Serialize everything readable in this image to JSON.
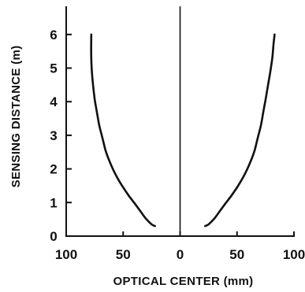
{
  "chart_data": {
    "type": "line",
    "title": "",
    "xlabel": "OPTICAL CENTER (mm)",
    "ylabel": "SENSING DISTANCE (m)",
    "xlim": [
      -100,
      100
    ],
    "ylim": [
      0,
      6.6
    ],
    "x_ticks": [
      -100,
      -50,
      0,
      50,
      100
    ],
    "x_tick_labels": [
      "100",
      "50",
      "0",
      "50",
      "100"
    ],
    "y_ticks": [
      0,
      1,
      2,
      3,
      4,
      5,
      6
    ],
    "y_tick_labels": [
      "0",
      "1",
      "2",
      "3",
      "4",
      "5",
      "6"
    ],
    "grid": false,
    "center_line_x": 0,
    "series": [
      {
        "x": [
          -22,
          -25,
          -30,
          -35,
          -40,
          -45,
          -50,
          -55,
          -60,
          -65,
          -68,
          -71,
          -73,
          -75,
          -77,
          -78,
          -78
        ],
        "y": [
          0.3,
          0.35,
          0.52,
          0.75,
          0.98,
          1.2,
          1.45,
          1.73,
          2.07,
          2.5,
          2.9,
          3.3,
          3.68,
          4.08,
          4.7,
          5.3,
          6.0
        ]
      },
      {
        "x": [
          22,
          25,
          30,
          35,
          40,
          45,
          50,
          55,
          60,
          65,
          68,
          71,
          73,
          75,
          77,
          79,
          81,
          82,
          83
        ],
        "y": [
          0.3,
          0.35,
          0.52,
          0.75,
          0.98,
          1.2,
          1.45,
          1.73,
          2.07,
          2.5,
          2.9,
          3.3,
          3.68,
          4.05,
          4.45,
          4.85,
          5.3,
          5.7,
          6.0
        ]
      }
    ],
    "line_color": "#111111"
  }
}
